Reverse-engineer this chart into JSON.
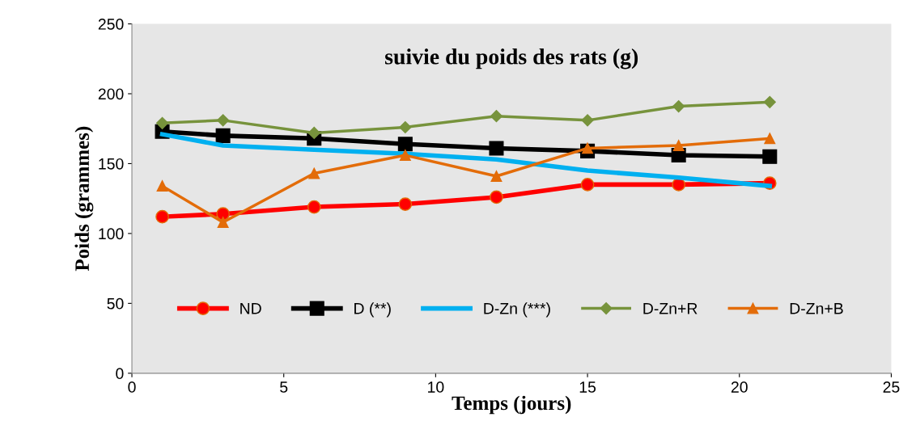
{
  "chart_data": {
    "type": "line",
    "title": "suivie du poids des rats (g)",
    "xlabel": "Temps (jours)",
    "ylabel": "Poids (grammes)",
    "x": [
      1,
      3,
      6,
      9,
      12,
      15,
      18,
      21
    ],
    "series": [
      {
        "name": "ND",
        "color": "#ff0000",
        "marker": "circle",
        "values": [
          112,
          114,
          119,
          121,
          126,
          135,
          135,
          136
        ]
      },
      {
        "name": "D (**)",
        "color": "#000000",
        "marker": "square",
        "values": [
          173,
          170,
          168,
          164,
          161,
          159,
          156,
          155
        ]
      },
      {
        "name": "D-Zn (***)",
        "color": "#00b0f0",
        "marker": "none",
        "values": [
          171,
          163,
          160,
          157,
          153,
          145,
          140,
          134
        ]
      },
      {
        "name": "D-Zn+R",
        "color": "#77933c",
        "marker": "diamond",
        "values": [
          179,
          181,
          172,
          176,
          184,
          181,
          191,
          194
        ]
      },
      {
        "name": "D-Zn+B",
        "color": "#e36c09",
        "marker": "triangle",
        "values": [
          134,
          108,
          143,
          156,
          141,
          161,
          163,
          168
        ]
      }
    ],
    "xlim": [
      0,
      25
    ],
    "xticks": [
      0,
      5,
      10,
      15,
      20,
      25
    ],
    "ylim": [
      0,
      250
    ],
    "yticks": [
      0,
      50,
      100,
      150,
      200,
      250
    ],
    "grid": false,
    "legend": "bottom"
  }
}
